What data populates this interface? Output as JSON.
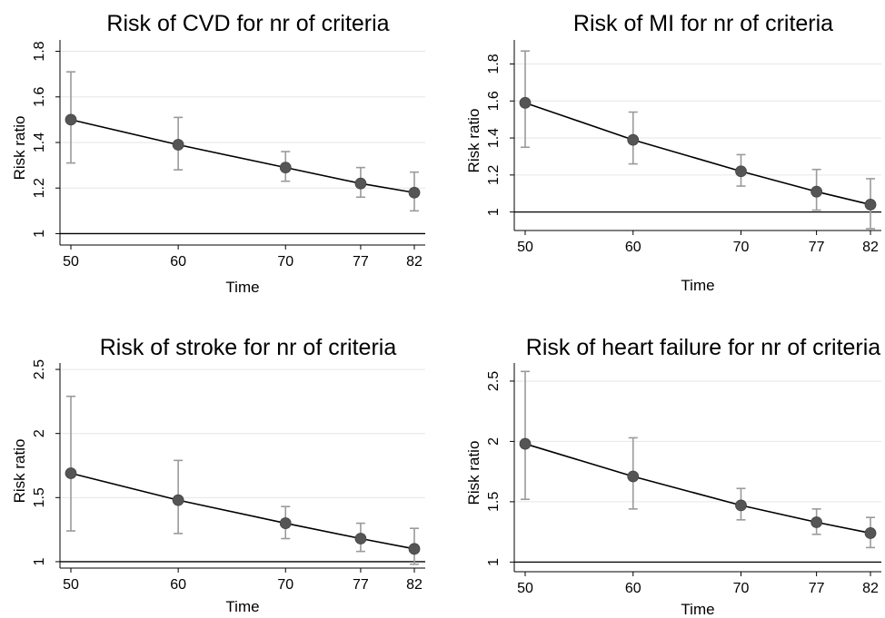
{
  "chart_data": [
    {
      "type": "line",
      "title": "Risk of CVD for nr of criteria",
      "xlabel": "Time",
      "ylabel": "Risk ratio",
      "x": [
        50,
        60,
        70,
        77,
        82
      ],
      "x_ticks": [
        "50",
        "60",
        "70",
        "77",
        "82"
      ],
      "y_ticks": [
        1,
        1.2,
        1.4,
        1.6,
        1.8
      ],
      "y_tick_labels": [
        "1",
        "1.2",
        "1.4",
        "1.6",
        "1.8"
      ],
      "ylim": [
        0.95,
        1.85
      ],
      "reference_line": 1,
      "series": [
        {
          "values": [
            1.5,
            1.39,
            1.29,
            1.22,
            1.18
          ],
          "ci_low": [
            1.31,
            1.28,
            1.23,
            1.16,
            1.1
          ],
          "ci_high": [
            1.71,
            1.51,
            1.36,
            1.29,
            1.27
          ]
        }
      ]
    },
    {
      "type": "line",
      "title": "Risk of MI for nr of criteria",
      "xlabel": "Time",
      "ylabel": "Risk ratio",
      "x": [
        50,
        60,
        70,
        77,
        82
      ],
      "x_ticks": [
        "50",
        "60",
        "70",
        "77",
        "82"
      ],
      "y_ticks": [
        1,
        1.2,
        1.4,
        1.6,
        1.8
      ],
      "y_tick_labels": [
        "1",
        "1.2",
        "1.4",
        "1.6",
        "1.8"
      ],
      "ylim": [
        0.9,
        1.93
      ],
      "reference_line": 1,
      "series": [
        {
          "values": [
            1.59,
            1.39,
            1.22,
            1.11,
            1.04
          ],
          "ci_low": [
            1.35,
            1.26,
            1.14,
            1.01,
            0.91
          ],
          "ci_high": [
            1.87,
            1.54,
            1.31,
            1.23,
            1.18
          ]
        }
      ]
    },
    {
      "type": "line",
      "title": "Risk of stroke for nr of criteria",
      "xlabel": "Time",
      "ylabel": "Risk ratio",
      "x": [
        50,
        60,
        70,
        77,
        82
      ],
      "x_ticks": [
        "50",
        "60",
        "70",
        "77",
        "82"
      ],
      "y_ticks": [
        1,
        1.5,
        2,
        2.5
      ],
      "y_tick_labels": [
        "1",
        "1.5",
        "2",
        "2.5"
      ],
      "ylim": [
        0.95,
        2.55
      ],
      "reference_line": 1,
      "series": [
        {
          "values": [
            1.69,
            1.48,
            1.3,
            1.18,
            1.1
          ],
          "ci_low": [
            1.24,
            1.22,
            1.18,
            1.08,
            0.98
          ],
          "ci_high": [
            2.29,
            1.79,
            1.43,
            1.3,
            1.26
          ]
        }
      ]
    },
    {
      "type": "line",
      "title": "Risk of heart failure for nr of criteria",
      "xlabel": "Time",
      "ylabel": "Risk ratio",
      "x": [
        50,
        60,
        70,
        77,
        82
      ],
      "x_ticks": [
        "50",
        "60",
        "70",
        "77",
        "82"
      ],
      "y_ticks": [
        1,
        1.5,
        2,
        2.5
      ],
      "y_tick_labels": [
        "1",
        "1.5",
        "2",
        "2.5"
      ],
      "ylim": [
        0.92,
        2.65
      ],
      "reference_line": 1,
      "series": [
        {
          "values": [
            1.98,
            1.71,
            1.47,
            1.33,
            1.24
          ],
          "ci_low": [
            1.52,
            1.44,
            1.35,
            1.23,
            1.12
          ],
          "ci_high": [
            2.58,
            2.03,
            1.61,
            1.44,
            1.37
          ]
        }
      ]
    }
  ]
}
